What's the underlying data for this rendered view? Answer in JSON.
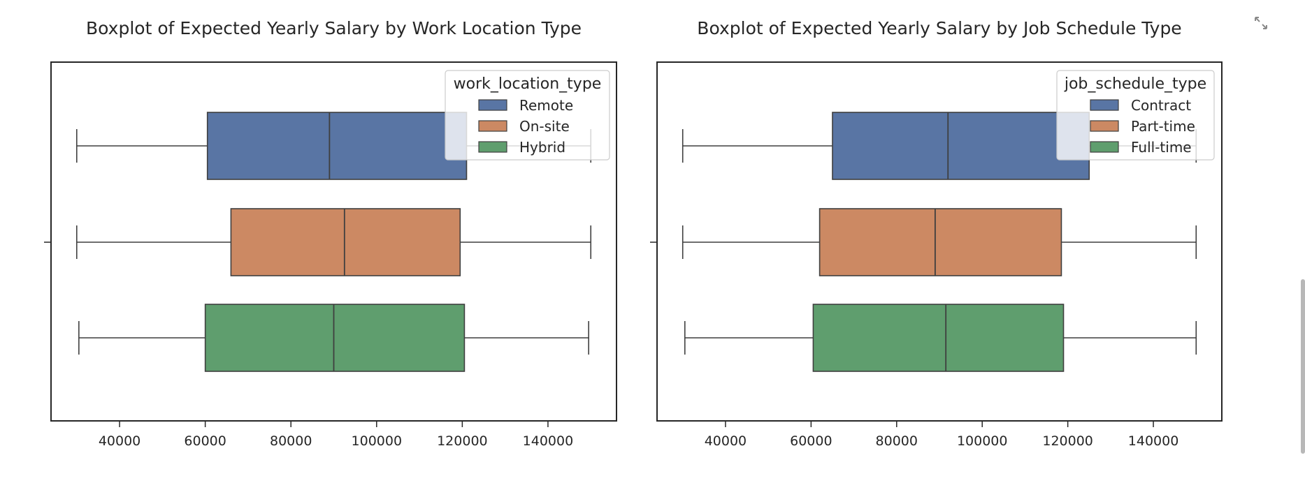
{
  "chart_data": [
    {
      "type": "boxplot",
      "orientation": "horizontal",
      "title": "Boxplot of Expected Yearly Salary by Work Location Type",
      "xlim": [
        24000,
        156000
      ],
      "xticks": [
        40000,
        60000,
        80000,
        100000,
        120000,
        140000
      ],
      "xtick_labels": [
        "40000",
        "60000",
        "80000",
        "100000",
        "120000",
        "140000"
      ],
      "xlabel": "",
      "ylabel": "",
      "legend": {
        "title": "work_location_type",
        "placement": "top-right"
      },
      "series": [
        {
          "name": "Remote",
          "color": "#5975a4",
          "whislo": 30000,
          "q1": 60500,
          "med": 89000,
          "q3": 121000,
          "whishi": 150000
        },
        {
          "name": "On-site",
          "color": "#cc8963",
          "whislo": 30000,
          "q1": 66000,
          "med": 92500,
          "q3": 119500,
          "whishi": 150000
        },
        {
          "name": "Hybrid",
          "color": "#5f9e6e",
          "whislo": 30500,
          "q1": 60000,
          "med": 90000,
          "q3": 120500,
          "whishi": 149500
        }
      ]
    },
    {
      "type": "boxplot",
      "orientation": "horizontal",
      "title": "Boxplot of Expected Yearly Salary by Job Schedule Type",
      "xlim": [
        24000,
        156000
      ],
      "xticks": [
        40000,
        60000,
        80000,
        100000,
        120000,
        140000
      ],
      "xtick_labels": [
        "40000",
        "60000",
        "80000",
        "100000",
        "120000",
        "140000"
      ],
      "xlabel": "",
      "ylabel": "",
      "legend": {
        "title": "job_schedule_type",
        "placement": "top-right"
      },
      "series": [
        {
          "name": "Contract",
          "color": "#5975a4",
          "whislo": 30000,
          "q1": 65000,
          "med": 92000,
          "q3": 125000,
          "whishi": 150000
        },
        {
          "name": "Part-time",
          "color": "#cc8963",
          "whislo": 30000,
          "q1": 62000,
          "med": 89000,
          "q3": 118500,
          "whishi": 150000
        },
        {
          "name": "Full-time",
          "color": "#5f9e6e",
          "whislo": 30500,
          "q1": 60500,
          "med": 91500,
          "q3": 119000,
          "whishi": 150000
        }
      ]
    }
  ],
  "ui": {
    "expand_icon": "expand-arrows-icon",
    "scrollbar": "vertical-scrollbar"
  }
}
